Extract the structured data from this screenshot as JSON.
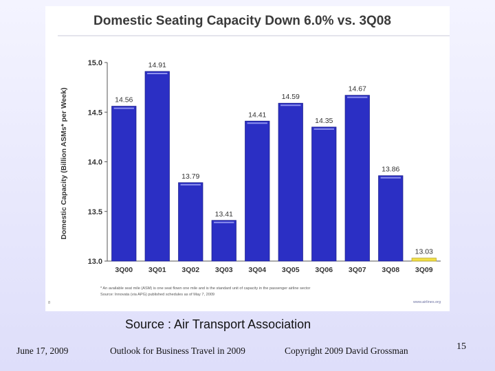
{
  "chart_data": {
    "type": "bar",
    "title": "Domestic Seating Capacity Down 6.0% vs. 3Q08",
    "ylabel": "Domestic Capacity (Billion ASMs* per Week)",
    "xlabel": "",
    "categories": [
      "3Q00",
      "3Q01",
      "3Q02",
      "3Q03",
      "3Q04",
      "3Q05",
      "3Q06",
      "3Q07",
      "3Q08",
      "3Q09"
    ],
    "values": [
      14.56,
      14.91,
      13.79,
      13.41,
      14.41,
      14.59,
      14.35,
      14.67,
      13.86,
      13.03
    ],
    "value_labels": [
      "14.56",
      "14.91",
      "13.79",
      "13.41",
      "14.41",
      "14.59",
      "14.35",
      "14.67",
      "13.86",
      "13.03"
    ],
    "ylim": [
      13.0,
      15.0
    ],
    "yticks": [
      "13.0",
      "13.5",
      "14.0",
      "14.5",
      "15.0"
    ],
    "grid": false,
    "colors": {
      "bar": "#2b2fc4",
      "highlight": "#f1df45",
      "title": "#3a3a3a"
    },
    "highlight_category": "3Q09",
    "footnotes": [
      "* An available seat mile (ASM) is one seat flown one mile and is the standard unit of capacity in the passenger airline sector",
      "Source: Innovata (via APG) published schedules as of May 7, 2009"
    ],
    "corner_marks": {
      "page": "8",
      "website": "www.airlines.org"
    }
  },
  "caption": "Source : Air Transport Association",
  "footer": {
    "date": "June 17, 2009",
    "title": "Outlook for Business Travel in 2009",
    "copyright": "Copyright 2009 David Grossman",
    "slide_number": "15"
  }
}
